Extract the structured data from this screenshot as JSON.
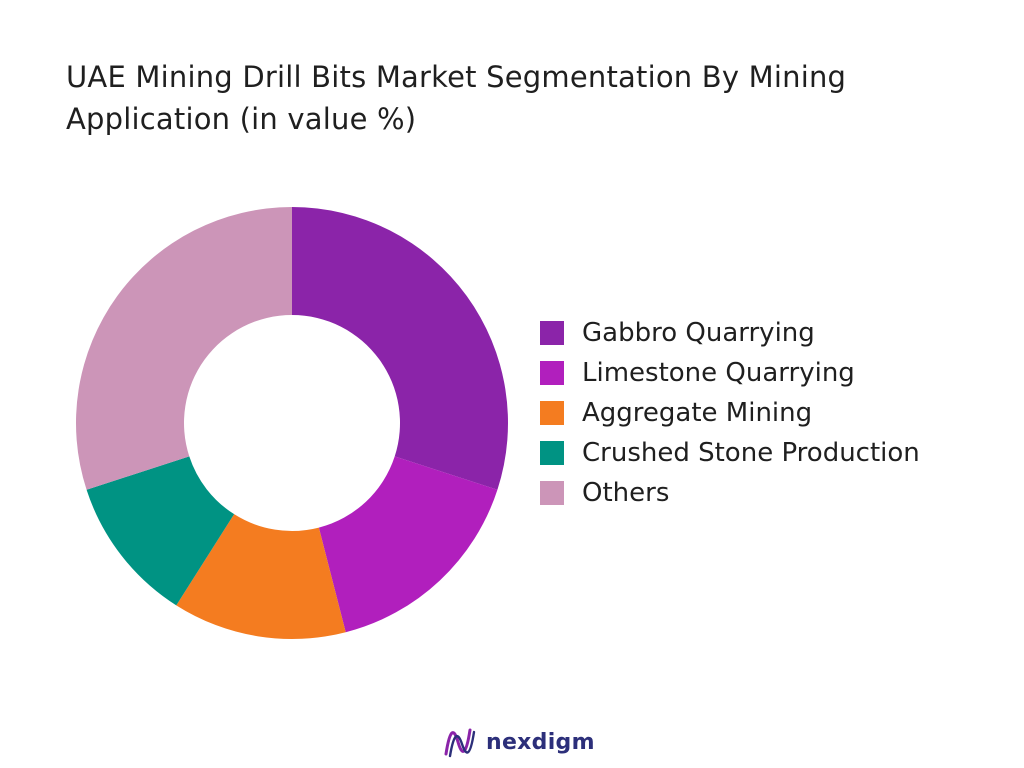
{
  "title": "UAE Mining Drill Bits Market Segmentation By Mining Application (in value %)",
  "chart_data": {
    "type": "pie",
    "variant": "donut",
    "title": "UAE Mining Drill Bits Market Segmentation By Mining Application (in value %)",
    "categories": [
      "Gabbro Quarrying",
      "Limestone Quarrying",
      "Aggregate Mining",
      "Crushed Stone Production",
      "Others"
    ],
    "values": [
      30,
      16,
      13,
      11,
      30
    ],
    "colors": [
      "#8b24a9",
      "#b11fbd",
      "#f47c20",
      "#009383",
      "#cc95b8"
    ],
    "legend_position": "right"
  },
  "legend": [
    {
      "label": "Gabbro Quarrying",
      "color": "#8b24a9"
    },
    {
      "label": "Limestone Quarrying",
      "color": "#b11fbd"
    },
    {
      "label": "Aggregate Mining",
      "color": "#f47c20"
    },
    {
      "label": "Crushed Stone Production",
      "color": "#009383"
    },
    {
      "label": "Others",
      "color": "#cc95b8"
    }
  ],
  "logo": {
    "text": "nexdigm",
    "icon": "nexdigm-wave-logo",
    "color": "#2c2f7a"
  }
}
